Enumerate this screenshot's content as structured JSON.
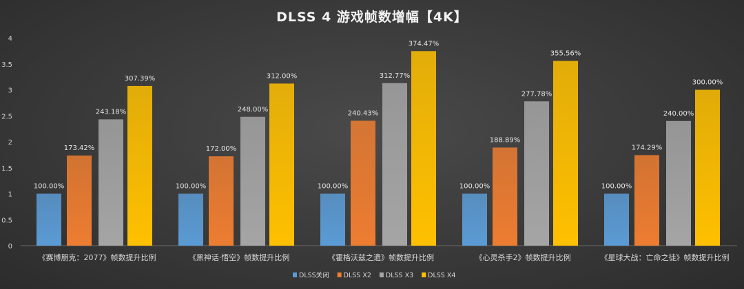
{
  "chart_data": {
    "type": "bar",
    "title": "DLSS 4 游戏帧数增幅【4K】",
    "categories": [
      "《赛博朋克：2077》帧数提升比例",
      "《黑神话·悟空》帧数提升比例",
      "《霍格沃兹之遗》帧数提升比例",
      "《心灵杀手2》帧数提升比例",
      "《星球大战：亡命之徒》帧数提升比例"
    ],
    "series": [
      {
        "name": "DLSS关闭",
        "color": "#5b9bd5",
        "values": [
          1,
          1,
          1,
          1,
          1
        ],
        "labels": [
          "100.00%",
          "100.00%",
          "100.00%",
          "100.00%",
          "100.00%"
        ]
      },
      {
        "name": "DLSS X2",
        "color": "#ed7d31",
        "values": [
          1.7342,
          1.72,
          2.4043,
          1.8889,
          1.7429
        ],
        "labels": [
          "173.42%",
          "172.00%",
          "240.43%",
          "188.89%",
          "174.29%"
        ]
      },
      {
        "name": "DLSS X3",
        "color": "#a5a5a5",
        "values": [
          2.4318,
          2.48,
          3.1277,
          2.7778,
          2.4
        ],
        "labels": [
          "243.18%",
          "248.00%",
          "312.77%",
          "277.78%",
          "240.00%"
        ]
      },
      {
        "name": "DLSS X4",
        "color": "#ffc000",
        "values": [
          3.0739,
          3.12,
          3.7447,
          3.5556,
          3.0
        ],
        "labels": [
          "307.39%",
          "312.00%",
          "374.47%",
          "355.56%",
          "300.00%"
        ]
      }
    ],
    "yticks": [
      "0",
      "0.5",
      "1",
      "1.5",
      "2",
      "2.5",
      "3",
      "3.5",
      "4"
    ],
    "ylim": [
      0,
      4
    ],
    "grid": false,
    "legend": "bottom"
  }
}
